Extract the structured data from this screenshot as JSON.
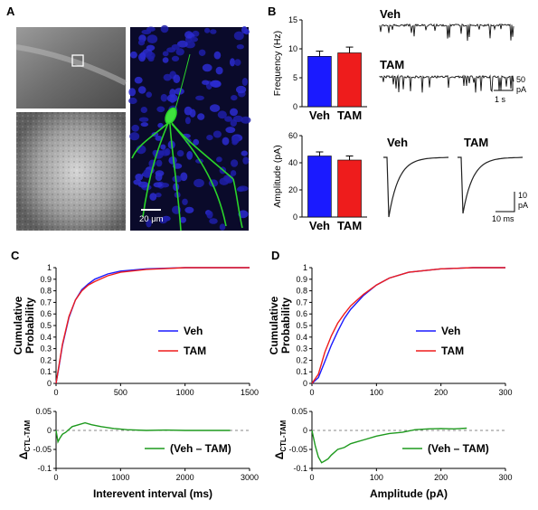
{
  "panel_labels": {
    "a": "A",
    "b": "B",
    "c": "C",
    "d": "D"
  },
  "colors": {
    "veh": "#1a1aff",
    "tam": "#ee1c1c",
    "diff": "#1e9a1e",
    "axis": "#000000",
    "dashed": "#888888"
  },
  "panel_a": {
    "scalebar_label": "20 μm"
  },
  "chart_data": [
    {
      "id": "frequency",
      "type": "bar",
      "categories": [
        "Veh",
        "TAM"
      ],
      "values": [
        8.7,
        9.3
      ],
      "errors": [
        0.9,
        1.0
      ],
      "ylabel": "Frequency (Hz)",
      "ylim": [
        0,
        15
      ],
      "yticks": [
        0,
        5,
        10,
        15
      ]
    },
    {
      "id": "amplitude",
      "type": "bar",
      "categories": [
        "Veh",
        "TAM"
      ],
      "values": [
        45,
        42
      ],
      "errors": [
        3,
        3
      ],
      "ylabel": "Amplitude (pA)",
      "ylim": [
        0,
        60
      ],
      "yticks": [
        0,
        20,
        40,
        60
      ]
    },
    {
      "id": "cumulative_interval",
      "type": "line",
      "ylabel": "Cumulative Probability",
      "xlim": [
        0,
        1500
      ],
      "xticks": [
        0,
        500,
        1000,
        1500
      ],
      "ylim": [
        0,
        1
      ],
      "yticks": [
        0,
        0.1,
        0.2,
        0.3,
        0.4,
        0.5,
        0.6,
        0.7,
        0.8,
        0.9,
        1
      ],
      "ytick_labels": [
        "0",
        "0.1",
        "0.2",
        "0.3",
        "0.4",
        "0.5",
        "0.6",
        "0.7",
        "0.8",
        "0.9",
        "1"
      ],
      "series": [
        {
          "name": "Veh",
          "x": [
            0,
            20,
            50,
            100,
            150,
            200,
            250,
            300,
            400,
            500,
            700,
            1000,
            1500
          ],
          "y": [
            0,
            0.13,
            0.33,
            0.57,
            0.72,
            0.81,
            0.86,
            0.9,
            0.945,
            0.97,
            0.99,
            1.0,
            1.0
          ]
        },
        {
          "name": "TAM",
          "x": [
            0,
            20,
            50,
            100,
            150,
            200,
            250,
            300,
            400,
            500,
            700,
            1000,
            1500
          ],
          "y": [
            0,
            0.14,
            0.34,
            0.58,
            0.72,
            0.8,
            0.85,
            0.88,
            0.93,
            0.96,
            0.985,
            1.0,
            1.0
          ]
        }
      ]
    },
    {
      "id": "diff_interval",
      "type": "line",
      "ylabel": "Δ",
      "ylabel_sub": "CTL-TAM",
      "xlabel": "Interevent interval (ms)",
      "xlim": [
        0,
        3000
      ],
      "xticks": [
        0,
        1000,
        2000,
        3000
      ],
      "ylim": [
        -0.1,
        0.05
      ],
      "yticks": [
        0.05,
        0,
        -0.05,
        -0.1
      ],
      "ytick_labels": [
        "0.05",
        "0",
        "-0.05",
        "-0.1"
      ],
      "series": [
        {
          "name": "(Veh – TAM)",
          "x": [
            0,
            30,
            60,
            100,
            150,
            250,
            350,
            450,
            550,
            700,
            900,
            1100,
            1400,
            1700,
            2000,
            2400,
            2700
          ],
          "y": [
            0,
            -0.03,
            -0.02,
            -0.01,
            -0.005,
            0.01,
            0.015,
            0.02,
            0.015,
            0.01,
            0.005,
            0.002,
            0,
            0.001,
            0,
            0,
            0
          ]
        }
      ]
    },
    {
      "id": "cumulative_amplitude",
      "type": "line",
      "ylabel": "Cumulative Probability",
      "xlim": [
        0,
        300
      ],
      "xticks": [
        0,
        100,
        200,
        300
      ],
      "ylim": [
        0,
        1
      ],
      "yticks": [
        0,
        0.1,
        0.2,
        0.3,
        0.4,
        0.5,
        0.6,
        0.7,
        0.8,
        0.9,
        1
      ],
      "ytick_labels": [
        "0",
        "0.1",
        "0.2",
        "0.3",
        "0.4",
        "0.5",
        "0.6",
        "0.7",
        "0.8",
        "0.9",
        "1"
      ],
      "series": [
        {
          "name": "Veh",
          "x": [
            0,
            10,
            20,
            30,
            40,
            50,
            60,
            80,
            100,
            120,
            150,
            200,
            250,
            300
          ],
          "y": [
            0,
            0.05,
            0.19,
            0.33,
            0.45,
            0.56,
            0.64,
            0.76,
            0.85,
            0.91,
            0.96,
            0.99,
            1.0,
            1.0
          ]
        },
        {
          "name": "TAM",
          "x": [
            0,
            10,
            20,
            30,
            40,
            50,
            60,
            80,
            100,
            120,
            150,
            200,
            250,
            300
          ],
          "y": [
            0,
            0.08,
            0.27,
            0.41,
            0.52,
            0.6,
            0.67,
            0.77,
            0.85,
            0.91,
            0.96,
            0.99,
            1.0,
            1.0
          ]
        }
      ]
    },
    {
      "id": "diff_amplitude",
      "type": "line",
      "ylabel": "Δ",
      "ylabel_sub": "CTL-TAM",
      "xlabel": "Amplitude (pA)",
      "xlim": [
        0,
        300
      ],
      "xticks": [
        0,
        100,
        200,
        300
      ],
      "ylim": [
        -0.1,
        0.05
      ],
      "yticks": [
        0.05,
        0,
        -0.05,
        -0.1
      ],
      "ytick_labels": [
        "0.05",
        "0",
        "-0.05",
        "-0.1"
      ],
      "series": [
        {
          "name": "(Veh – TAM)",
          "x": [
            0,
            5,
            10,
            15,
            20,
            25,
            30,
            40,
            50,
            60,
            70,
            80,
            100,
            120,
            140,
            160,
            180,
            200,
            220,
            240
          ],
          "y": [
            0,
            -0.04,
            -0.07,
            -0.085,
            -0.08,
            -0.075,
            -0.065,
            -0.05,
            -0.045,
            -0.035,
            -0.03,
            -0.025,
            -0.015,
            -0.008,
            -0.005,
            0.002,
            0.004,
            0.005,
            0.004,
            0.006
          ]
        }
      ]
    }
  ],
  "traces": {
    "veh_label": "Veh",
    "tam_label": "TAM",
    "scale_top_v": "50",
    "scale_top_unit": "pA",
    "scale_top_h": "1 s",
    "avg_veh_label": "Veh",
    "avg_tam_label": "TAM",
    "scale_bot_v": "10",
    "scale_bot_unit": "pA",
    "scale_bot_h": "10 ms"
  }
}
